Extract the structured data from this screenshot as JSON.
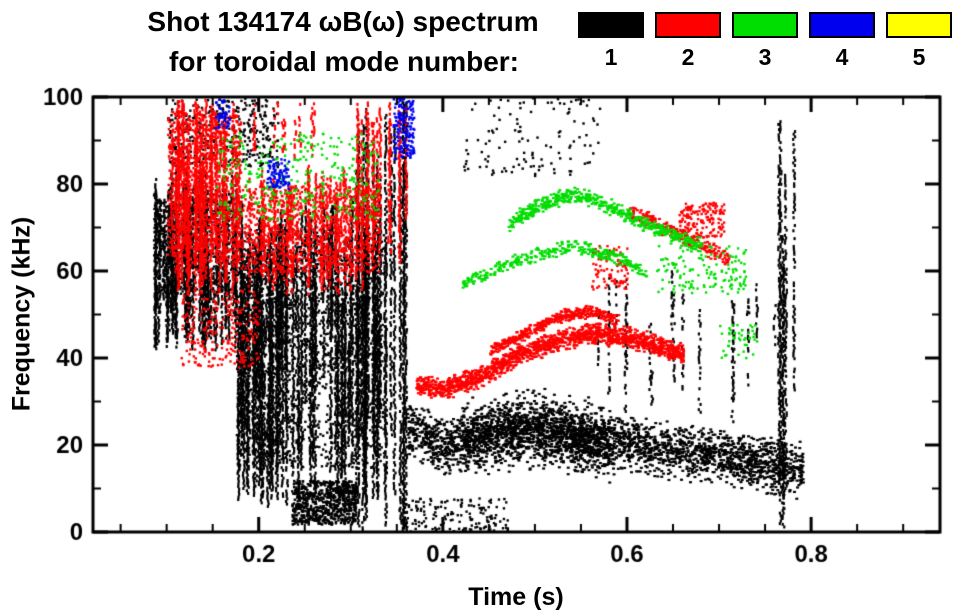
{
  "chart_data": {
    "type": "scatter",
    "subtype": "spectrogram-by-toroidal-mode",
    "title": "Shot 134174 ωB(ω) spectrum",
    "subtitle": "for toroidal mode number:",
    "xlabel": "Time (s)",
    "ylabel": "Frequency (kHz)",
    "xlim": [
      0.02,
      0.94
    ],
    "ylim": [
      0,
      100
    ],
    "xticks": [
      0.2,
      0.4,
      0.6,
      0.8
    ],
    "xtick_labels": [
      "0.2",
      "0.4",
      "0.6",
      "0.8"
    ],
    "x_minor_step": 0.05,
    "yticks": [
      0,
      20,
      40,
      60,
      80,
      100
    ],
    "ytick_labels": [
      "0",
      "20",
      "40",
      "60",
      "80",
      "100"
    ],
    "y_minor_step": 10,
    "grid": false,
    "legend_position": "top-right",
    "legend": [
      {
        "label": "1",
        "color": "#000000"
      },
      {
        "label": "2",
        "color": "#ff0000"
      },
      {
        "label": "3",
        "color": "#00dd00"
      },
      {
        "label": "4",
        "color": "#0000ee"
      },
      {
        "label": "5",
        "color": "#ffff00"
      }
    ],
    "seed": 1337,
    "features": [
      {
        "mode": 1,
        "kind": "streaks",
        "t": [
          0.085,
          0.175
        ],
        "f": [
          42,
          84
        ],
        "count": 55,
        "minSpan": 12,
        "maxSpan": 40,
        "density": 0.8
      },
      {
        "mode": 1,
        "kind": "cloud",
        "t": [
          0.1,
          0.22
        ],
        "f": [
          84,
          100
        ],
        "n": 380
      },
      {
        "mode": 1,
        "kind": "cloud",
        "t": [
          0.085,
          0.175
        ],
        "f": [
          55,
          78
        ],
        "n": 650
      },
      {
        "mode": 1,
        "kind": "streaks",
        "t": [
          0.175,
          0.335
        ],
        "f": [
          6,
          78
        ],
        "count": 80,
        "minSpan": 18,
        "maxSpan": 65,
        "density": 0.85
      },
      {
        "mode": 1,
        "kind": "cloud",
        "t": [
          0.175,
          0.335
        ],
        "f": [
          15,
          70
        ],
        "n": 1400
      },
      {
        "mode": 1,
        "kind": "cloud",
        "t": [
          0.235,
          0.305
        ],
        "f": [
          2,
          12
        ],
        "n": 750
      },
      {
        "mode": 1,
        "kind": "streaks",
        "t": [
          0.305,
          0.365
        ],
        "f": [
          0,
          100
        ],
        "count": 18,
        "minSpan": 50,
        "maxSpan": 100,
        "density": 0.8
      },
      {
        "mode": 1,
        "kind": "band",
        "path": [
          [
            0.36,
            24
          ],
          [
            0.4,
            20
          ],
          [
            0.44,
            22
          ],
          [
            0.48,
            24
          ],
          [
            0.52,
            23
          ],
          [
            0.56,
            21
          ],
          [
            0.6,
            20
          ],
          [
            0.64,
            19
          ],
          [
            0.68,
            18
          ],
          [
            0.72,
            17
          ],
          [
            0.76,
            15
          ],
          [
            0.79,
            14
          ]
        ],
        "halfwidth": 7,
        "n": 2600
      },
      {
        "mode": 1,
        "kind": "band",
        "path": [
          [
            0.42,
            22
          ],
          [
            0.5,
            24
          ],
          [
            0.58,
            21
          ]
        ],
        "halfwidth": 10,
        "n": 900
      },
      {
        "mode": 1,
        "kind": "streaks",
        "t": [
          0.55,
          0.77
        ],
        "f": [
          25,
          62
        ],
        "count": 18,
        "minSpan": 8,
        "maxSpan": 30,
        "density": 0.5
      },
      {
        "mode": 1,
        "kind": "streaks",
        "t": [
          0.763,
          0.79
        ],
        "f": [
          0,
          95
        ],
        "count": 6,
        "minSpan": 55,
        "maxSpan": 95,
        "density": 0.7
      },
      {
        "mode": 1,
        "kind": "cloud",
        "t": [
          0.42,
          0.57
        ],
        "f": [
          82,
          100
        ],
        "n": 120
      },
      {
        "mode": 1,
        "kind": "cloud",
        "t": [
          0.35,
          0.47
        ],
        "f": [
          0,
          8
        ],
        "n": 160
      },
      {
        "mode": 2,
        "kind": "streaks",
        "t": [
          0.1,
          0.18
        ],
        "f": [
          55,
          100
        ],
        "count": 40,
        "minSpan": 15,
        "maxSpan": 45,
        "density": 0.8
      },
      {
        "mode": 2,
        "kind": "cloud",
        "t": [
          0.1,
          0.18
        ],
        "f": [
          62,
          97
        ],
        "n": 700
      },
      {
        "mode": 2,
        "kind": "streaks",
        "t": [
          0.18,
          0.33
        ],
        "f": [
          55,
          85
        ],
        "count": 35,
        "minSpan": 8,
        "maxSpan": 28,
        "density": 0.7
      },
      {
        "mode": 2,
        "kind": "cloud",
        "t": [
          0.18,
          0.33
        ],
        "f": [
          60,
          80
        ],
        "n": 850
      },
      {
        "mode": 2,
        "kind": "streaks",
        "t": [
          0.19,
          0.26
        ],
        "f": [
          85,
          100
        ],
        "count": 10,
        "minSpan": 6,
        "maxSpan": 14,
        "density": 0.5
      },
      {
        "mode": 2,
        "kind": "streaks",
        "t": [
          0.305,
          0.365
        ],
        "f": [
          62,
          100
        ],
        "count": 14,
        "minSpan": 20,
        "maxSpan": 38,
        "density": 0.75
      },
      {
        "mode": 2,
        "kind": "cloud",
        "t": [
          0.115,
          0.2
        ],
        "f": [
          38,
          56
        ],
        "n": 260
      },
      {
        "mode": 2,
        "kind": "band",
        "path": [
          [
            0.37,
            34
          ],
          [
            0.4,
            33
          ],
          [
            0.44,
            36
          ],
          [
            0.48,
            41
          ],
          [
            0.52,
            44
          ],
          [
            0.56,
            46
          ],
          [
            0.6,
            45
          ],
          [
            0.63,
            43
          ],
          [
            0.66,
            41
          ]
        ],
        "halfwidth": 2.8,
        "n": 1500
      },
      {
        "mode": 2,
        "kind": "band",
        "path": [
          [
            0.45,
            42
          ],
          [
            0.49,
            46
          ],
          [
            0.53,
            50
          ],
          [
            0.56,
            51
          ],
          [
            0.59,
            49
          ]
        ],
        "halfwidth": 1.6,
        "n": 420
      },
      {
        "mode": 2,
        "kind": "band",
        "path": [
          [
            0.6,
            74
          ],
          [
            0.64,
            70
          ],
          [
            0.68,
            66
          ],
          [
            0.71,
            63
          ]
        ],
        "halfwidth": 2.2,
        "n": 230
      },
      {
        "mode": 2,
        "kind": "cloud",
        "t": [
          0.655,
          0.705
        ],
        "f": [
          68,
          76
        ],
        "n": 170
      },
      {
        "mode": 2,
        "kind": "cloud",
        "t": [
          0.56,
          0.6
        ],
        "f": [
          56,
          66
        ],
        "n": 90
      },
      {
        "mode": 3,
        "kind": "cloud",
        "t": [
          0.15,
          0.33
        ],
        "f": [
          72,
          92
        ],
        "n": 330
      },
      {
        "mode": 3,
        "kind": "band",
        "path": [
          [
            0.42,
            57
          ],
          [
            0.46,
            61
          ],
          [
            0.5,
            64
          ],
          [
            0.54,
            66
          ],
          [
            0.58,
            64
          ],
          [
            0.62,
            60
          ]
        ],
        "halfwidth": 1.8,
        "n": 300
      },
      {
        "mode": 3,
        "kind": "band",
        "path": [
          [
            0.47,
            71
          ],
          [
            0.51,
            76
          ],
          [
            0.54,
            78
          ],
          [
            0.57,
            76
          ],
          [
            0.6,
            73
          ],
          [
            0.64,
            69
          ],
          [
            0.68,
            66
          ]
        ],
        "halfwidth": 2.2,
        "n": 520
      },
      {
        "mode": 3,
        "kind": "cloud",
        "t": [
          0.63,
          0.73
        ],
        "f": [
          55,
          66
        ],
        "n": 140
      },
      {
        "mode": 3,
        "kind": "cloud",
        "t": [
          0.7,
          0.74
        ],
        "f": [
          40,
          48
        ],
        "n": 45
      },
      {
        "mode": 4,
        "kind": "cloud",
        "t": [
          0.345,
          0.368
        ],
        "f": [
          86,
          100
        ],
        "n": 170
      },
      {
        "mode": 4,
        "kind": "cloud",
        "t": [
          0.208,
          0.232
        ],
        "f": [
          79,
          86
        ],
        "n": 85
      },
      {
        "mode": 4,
        "kind": "cloud",
        "t": [
          0.152,
          0.168
        ],
        "f": [
          93,
          100
        ],
        "n": 45
      }
    ]
  }
}
